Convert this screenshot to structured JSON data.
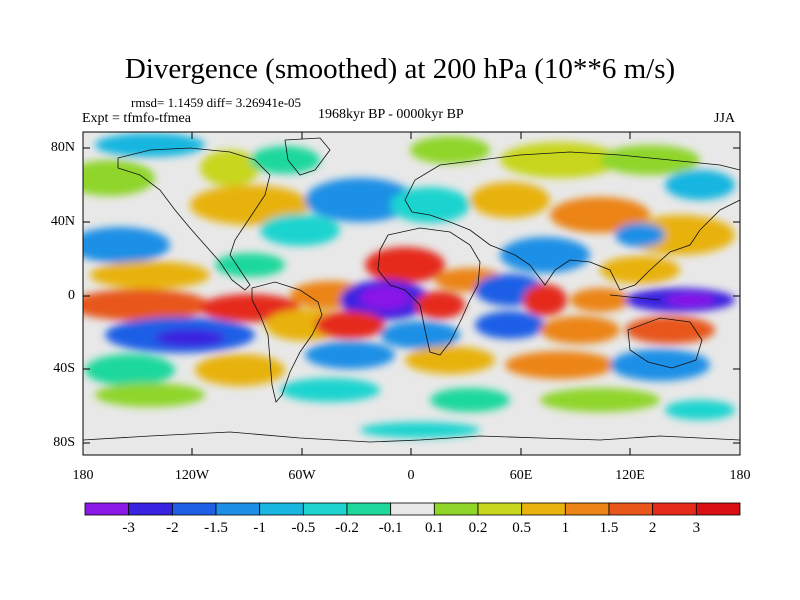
{
  "title": "Divergence (smoothed) at 200 hPa (10**6 m/s)",
  "stats": "rmsd= 1.1459 diff= 3.26941e-05",
  "experiment": "Expt = tfmfo-tfmea",
  "period": "1968kyr BP - 0000kyr BP",
  "season": "JJA",
  "axes": {
    "lat_labels": [
      "80N",
      "40N",
      "0",
      "40S",
      "80S"
    ],
    "lon_labels": [
      "180",
      "120W",
      "60W",
      "0",
      "60E",
      "120E",
      "180"
    ]
  },
  "colorbar": {
    "labels": [
      "-3",
      "-2",
      "-1.5",
      "-1",
      "-0.5",
      "-0.2",
      "-0.1",
      "0.1",
      "0.2",
      "0.5",
      "1",
      "1.5",
      "2",
      "3"
    ],
    "colors": [
      "#8a19e8",
      "#3a23e0",
      "#1f5fe6",
      "#1e8fe6",
      "#18b6e0",
      "#1fd4cf",
      "#1fd89b",
      "#e8e8e8",
      "#8fd52a",
      "#c7d61d",
      "#e8b20f",
      "#ec8417",
      "#e8561a",
      "#e52a1b",
      "#d90f14"
    ]
  },
  "colors": {
    "background": "#ffffff",
    "map_fill": "#e8e8e8"
  }
}
